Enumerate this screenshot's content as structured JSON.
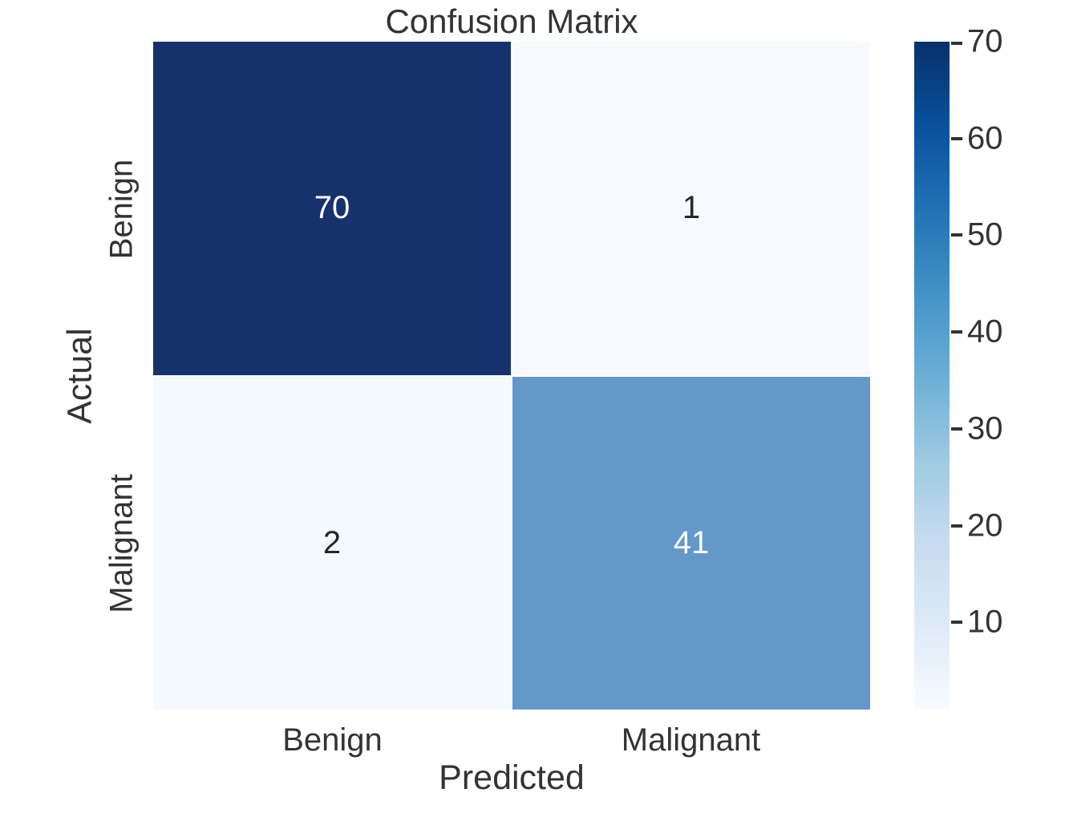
{
  "page": {
    "background": "#ffffff",
    "text_color": "#333333"
  },
  "chart_data": {
    "type": "heatmap",
    "title": "Confusion Matrix",
    "xlabel": "Predicted",
    "ylabel": "Actual",
    "x_categories": [
      "Benign",
      "Malignant"
    ],
    "y_categories": [
      "Benign",
      "Malignant"
    ],
    "matrix": [
      [
        70,
        1
      ],
      [
        2,
        41
      ]
    ],
    "colormap": "Blues",
    "vmin": 1,
    "vmax": 70,
    "grid": false,
    "legend_position": "right-colorbar",
    "colorbar_ticks": [
      10,
      20,
      30,
      40,
      50,
      60,
      70
    ],
    "cell_colors": [
      [
        "#15326d",
        "#f6fafe"
      ],
      [
        "#f4f9fd",
        "#6399c9"
      ]
    ],
    "cell_text_colors": [
      [
        "#ffffff",
        "#262626"
      ],
      [
        "#262626",
        "#ffffff"
      ]
    ],
    "colorbar_gradient": [
      "#f7fbff",
      "#deebf7",
      "#c6dbef",
      "#9ecae1",
      "#6baed6",
      "#4292c6",
      "#2171b5",
      "#08519c",
      "#08306b"
    ]
  }
}
